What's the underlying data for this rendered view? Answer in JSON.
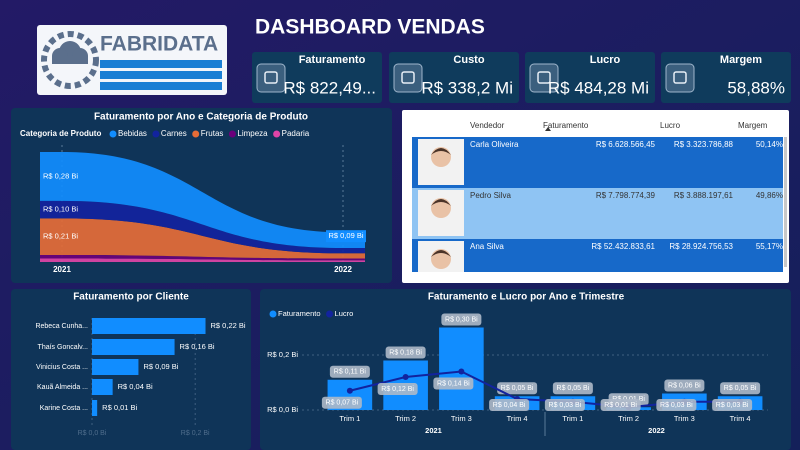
{
  "header": {
    "title": "DASHBOARD VENDAS",
    "logo": "FABRIDATA"
  },
  "kpis": [
    {
      "label": "Faturamento",
      "value": "R$ 822,49..."
    },
    {
      "label": "Custo",
      "value": "R$ 338,2 Mi"
    },
    {
      "label": "Lucro",
      "value": "R$ 484,28 Mi"
    },
    {
      "label": "Margem",
      "value": "58,88%"
    }
  ],
  "table": {
    "columns": [
      "Vendedor",
      "Faturamento",
      "Lucro",
      "Margem"
    ],
    "rows": [
      [
        "Carla Oliveira",
        "R$ 6.628.566,45",
        "R$ 3.323.786,88",
        "50,14%"
      ],
      [
        "Pedro Silva",
        "R$ 7.798.774,39",
        "R$ 3.888.197,61",
        "49,86%"
      ],
      [
        "Ana Silva",
        "R$ 52.432.833,61",
        "R$ 28.924.756,53",
        "55,17%"
      ]
    ]
  },
  "chart_data": [
    {
      "type": "area",
      "title": "Faturamento por Ano e Categoria de Produto",
      "legend_title": "Categoria de Produto",
      "categories": [
        "2021",
        "2022"
      ],
      "series": [
        {
          "name": "Bebidas",
          "color": "#118dff",
          "values": [
            0.28,
            0.09
          ],
          "value_labels": [
            "R$ 0,28 Bi",
            "R$ 0,09 Bi"
          ]
        },
        {
          "name": "Carnes",
          "color": "#12239e",
          "values": [
            0.1,
            0.03
          ],
          "value_labels": [
            "R$ 0,10 Bi",
            null
          ]
        },
        {
          "name": "Frutas",
          "color": "#e66c37",
          "values": [
            0.21,
            0.03
          ],
          "value_labels": [
            "R$ 0,21 Bi",
            null
          ]
        },
        {
          "name": "Limpeza",
          "color": "#6b007b",
          "values": [
            0.02,
            0.01
          ],
          "value_labels": [
            null,
            null
          ]
        },
        {
          "name": "Padaria",
          "color": "#e044a7",
          "values": [
            0.02,
            0.01
          ],
          "value_labels": [
            null,
            null
          ]
        }
      ]
    },
    {
      "type": "hbar",
      "title": "Faturamento por Cliente",
      "color": "#118dff",
      "categories": [
        "Rebeca Cunha...",
        "Thaís Goncalv...",
        "Vinicius Costa ...",
        "Kauã Almeida ...",
        "Karine Costa ..."
      ],
      "values": [
        0.22,
        0.16,
        0.09,
        0.04,
        0.01
      ],
      "value_labels": [
        "R$ 0,22 Bi",
        "R$ 0,16 Bi",
        "R$ 0,09 Bi",
        "R$ 0,04 Bi",
        "R$ 0,01 Bi"
      ],
      "xlim": [
        0,
        0.25
      ],
      "xticks": [
        {
          "value": 0,
          "label": "R$ 0,0 Bi"
        },
        {
          "value": 0.2,
          "label": "R$ 0,2 Bi"
        }
      ]
    },
    {
      "type": "combo",
      "title": "Faturamento e Lucro por Ano e Trimestre",
      "categories": [
        "Trim 1",
        "Trim 2",
        "Trim 3",
        "Trim 4",
        "Trim 1",
        "Trim 2",
        "Trim 3",
        "Trim 4"
      ],
      "groups": [
        "2021",
        "2022"
      ],
      "series": [
        {
          "name": "Faturamento",
          "kind": "bar",
          "color": "#118dff",
          "values": [
            0.11,
            0.18,
            0.3,
            0.05,
            0.05,
            0.01,
            0.06,
            0.05
          ],
          "value_labels": [
            "R$ 0,11 Bi",
            "R$ 0,18 Bi",
            "R$ 0,30 Bi",
            "R$ 0,05 Bi",
            "R$ 0,05 Bi",
            "R$ 0,01 Bi",
            "R$ 0,06 Bi",
            "R$ 0,05 Bi"
          ]
        },
        {
          "name": "Lucro",
          "kind": "line",
          "color": "#12239e",
          "values": [
            0.07,
            0.12,
            0.14,
            0.04,
            0.03,
            0.01,
            0.03,
            0.03
          ],
          "value_labels": [
            "R$ 0,07 Bi",
            "R$ 0,12 Bi",
            "R$ 0,14 Bi",
            "R$ 0,04 Bi",
            "R$ 0,03 Bi",
            "R$ 0,01 Bi",
            "R$ 0,03 Bi",
            "R$ 0,03 Bi"
          ]
        }
      ],
      "ylim": [
        0,
        0.3
      ],
      "yticks": [
        {
          "value": 0,
          "label": "R$ 0,0 Bi"
        },
        {
          "value": 0.2,
          "label": "R$ 0,2 Bi"
        }
      ]
    }
  ]
}
